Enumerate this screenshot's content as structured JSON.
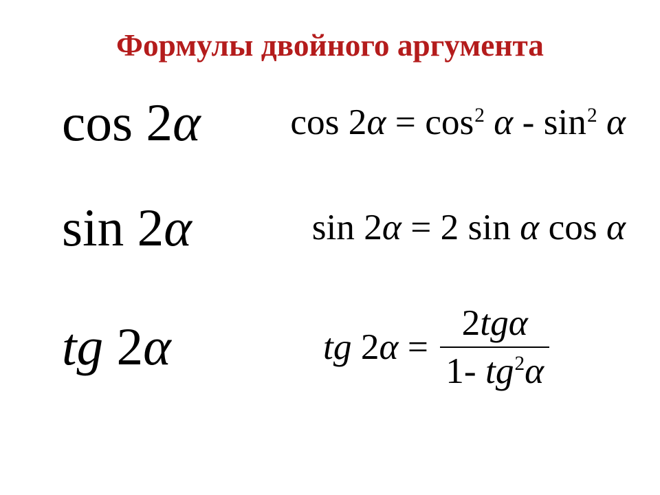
{
  "title": {
    "text": "Формулы двойного аргумента",
    "color": "#b41c1c",
    "fontsize_pt": 34
  },
  "lhs_fontsize_pt": 58,
  "rhs_fontsize_pt": 40,
  "text_color": "#000000",
  "background_color": "#ffffff",
  "rows": [
    {
      "lhs_html": "cos 2<span class='alpha'>α</span>",
      "rhs_html": "cos 2<span class='alpha'>α</span> = cos<sup class='exp'>2</sup> <span class='alpha'>α</span> <span class='big-minus'>-</span> sin<sup class='exp'>2</sup> <span class='alpha'>α</span>"
    },
    {
      "lhs_html": "sin 2<span class='alpha'>α</span>",
      "rhs_html": "sin 2<span class='alpha'>α</span> = 2 sin <span class='alpha'>α</span> cos <span class='alpha'>α</span>"
    },
    {
      "lhs_html": "<span class='ital'>tg</span> 2<span class='alpha'>α</span>",
      "rhs_html": "<span class='eq-inline'><span><span class='ital'>tg</span> 2<span class='alpha'>α</span> =&nbsp;</span><span class='frac'><span class='num'>2<span class='ital'>tg</span><span class='alpha'>α</span></span><span class='den'>1<span class='big-minus'>-</span> <span class='ital'>tg</span><sup class='exp'>2</sup><span class='alpha'>α</span></span></span></span>"
    }
  ]
}
